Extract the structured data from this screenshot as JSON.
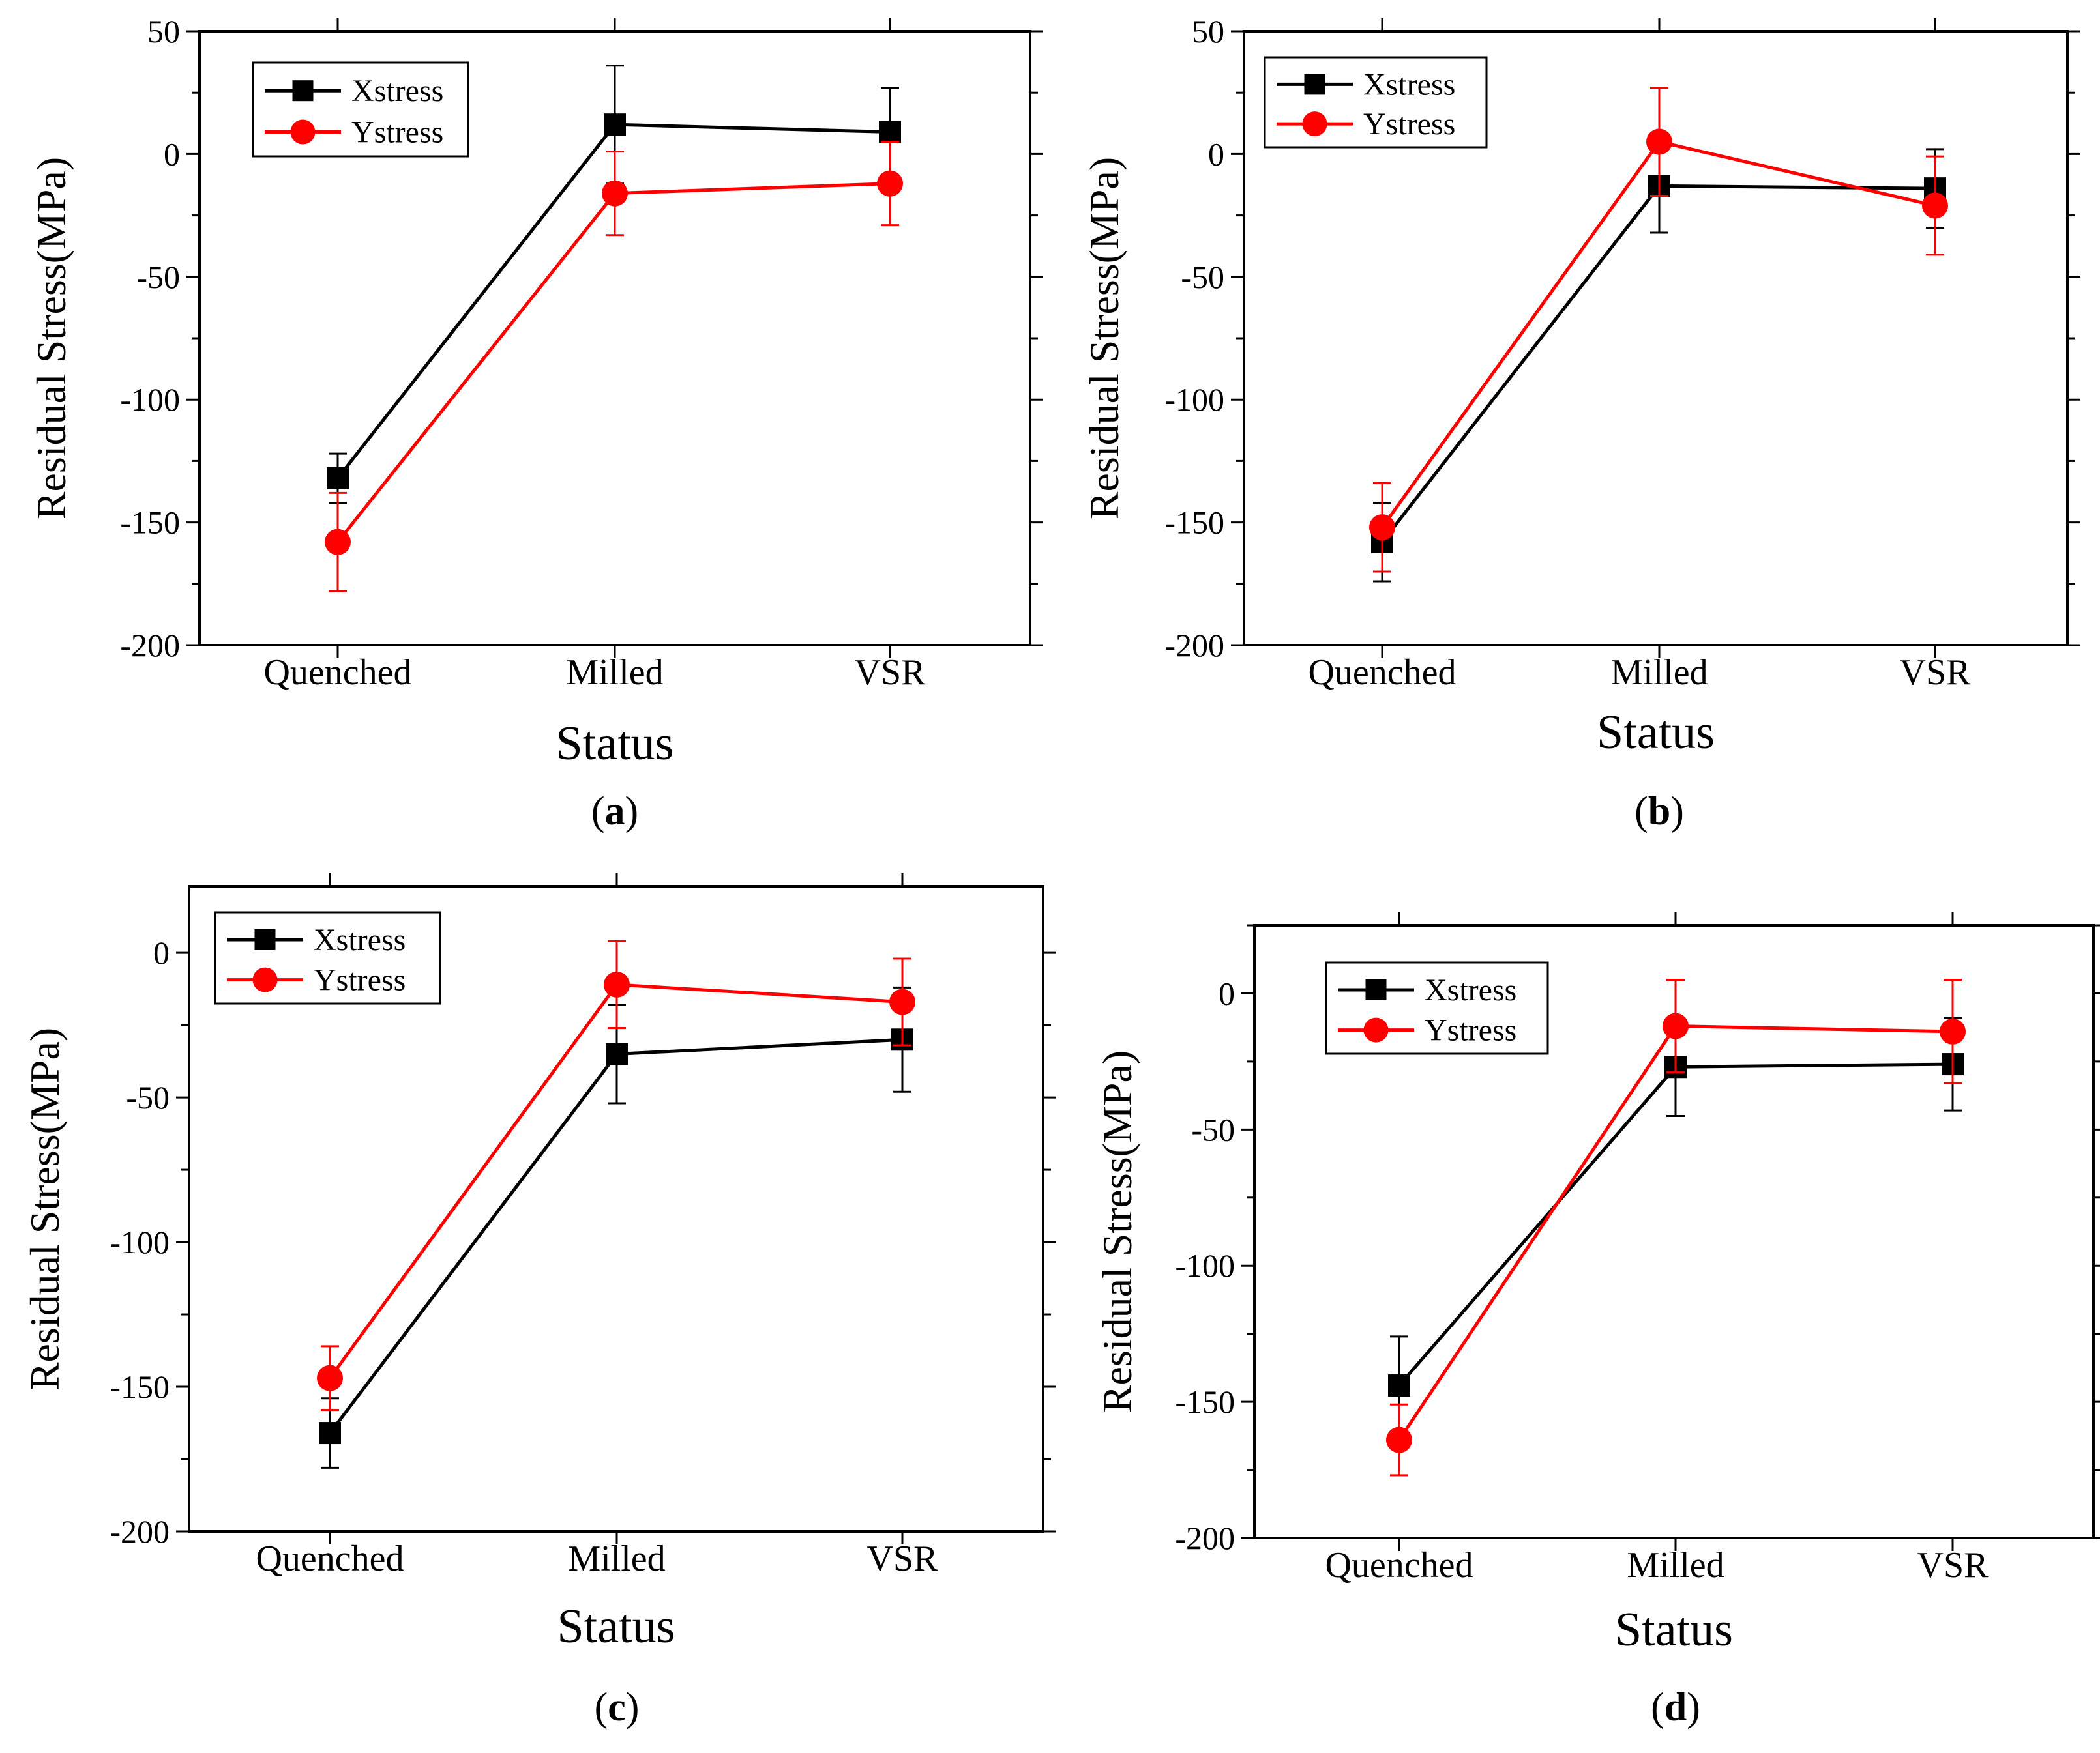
{
  "figure": {
    "colors": {
      "xstress": "#000000",
      "ystress": "#ff0000",
      "axis": "#000000",
      "background": "#ffffff"
    },
    "legend_labels": {
      "xstress": "Xstress",
      "ystress": "Ystress"
    }
  },
  "chart_data": [
    {
      "panel": "a",
      "caption_prefix": "(",
      "caption_letter": "a",
      "caption_suffix": ")",
      "type": "line",
      "title": "",
      "xlabel": "Status",
      "ylabel": "Residual Stress(MPa)",
      "categories": [
        "Quenched",
        "Milled",
        "VSR"
      ],
      "ylim": [
        -200,
        50
      ],
      "yticks": [
        50,
        0,
        -50,
        -100,
        -150,
        -200
      ],
      "ytick_labels": [
        "50",
        "0",
        "-50",
        "-100",
        "-150",
        "-200"
      ],
      "legend": "top-left",
      "grid": false,
      "series": [
        {
          "name": "Xstress",
          "color": "#000000",
          "marker": "square",
          "values": [
            -132,
            12,
            9
          ],
          "errors": [
            10,
            24,
            18
          ]
        },
        {
          "name": "Ystress",
          "color": "#ff0000",
          "marker": "circle",
          "values": [
            -158,
            -16,
            -12
          ],
          "errors": [
            20,
            17,
            17
          ]
        }
      ]
    },
    {
      "panel": "b",
      "caption_prefix": "(",
      "caption_letter": "b",
      "caption_suffix": ")",
      "type": "line",
      "title": "",
      "xlabel": "Status",
      "ylabel": "Residual Stress(MPa)",
      "categories": [
        "Quenched",
        "Milled",
        "VSR"
      ],
      "ylim": [
        -200,
        50
      ],
      "yticks": [
        50,
        0,
        -50,
        -100,
        -150,
        -200
      ],
      "ytick_labels": [
        "50",
        "0",
        "-50",
        "-100",
        "-150",
        "-200"
      ],
      "legend": "top-left",
      "grid": false,
      "series": [
        {
          "name": "Xstress",
          "color": "#000000",
          "marker": "square",
          "values": [
            -158,
            -13,
            -14
          ],
          "errors": [
            16,
            19,
            16
          ]
        },
        {
          "name": "Ystress",
          "color": "#ff0000",
          "marker": "circle",
          "values": [
            -152,
            5,
            -21
          ],
          "errors": [
            18,
            22,
            20
          ]
        }
      ]
    },
    {
      "panel": "c",
      "caption_prefix": "(",
      "caption_letter": "c",
      "caption_suffix": ")",
      "type": "line",
      "title": "",
      "xlabel": "Status",
      "ylabel": "Residual Stress(MPa)",
      "categories": [
        "Quenched",
        "Milled",
        "VSR"
      ],
      "ylim": [
        -200,
        23
      ],
      "yticks": [
        0,
        -50,
        -100,
        -150,
        -200
      ],
      "ytick_labels": [
        "0",
        "-50",
        "-100",
        "-150",
        "-200"
      ],
      "legend": "top-left",
      "grid": false,
      "series": [
        {
          "name": "Xstress",
          "color": "#000000",
          "marker": "square",
          "values": [
            -166,
            -35,
            -30
          ],
          "errors": [
            12,
            17,
            18
          ]
        },
        {
          "name": "Ystress",
          "color": "#ff0000",
          "marker": "circle",
          "values": [
            -147,
            -11,
            -17
          ],
          "errors": [
            11,
            15,
            15
          ]
        }
      ]
    },
    {
      "panel": "d",
      "caption_prefix": "(",
      "caption_letter": "d",
      "caption_suffix": ")",
      "type": "line",
      "title": "",
      "xlabel": "Status",
      "ylabel": "Residual Stress(MPa)",
      "categories": [
        "Quenched",
        "Milled",
        "VSR"
      ],
      "ylim": [
        -200,
        25
      ],
      "yticks": [
        0,
        -50,
        -100,
        -150,
        -200
      ],
      "ytick_labels": [
        "0",
        "-50",
        "-100",
        "-150",
        "-200"
      ],
      "legend": "top-left",
      "grid": false,
      "series": [
        {
          "name": "Xstress",
          "color": "#000000",
          "marker": "square",
          "values": [
            -144,
            -27,
            -26
          ],
          "errors": [
            18,
            18,
            17
          ]
        },
        {
          "name": "Ystress",
          "color": "#ff0000",
          "marker": "circle",
          "values": [
            -164,
            -12,
            -14
          ],
          "errors": [
            13,
            17,
            19
          ]
        }
      ]
    }
  ]
}
